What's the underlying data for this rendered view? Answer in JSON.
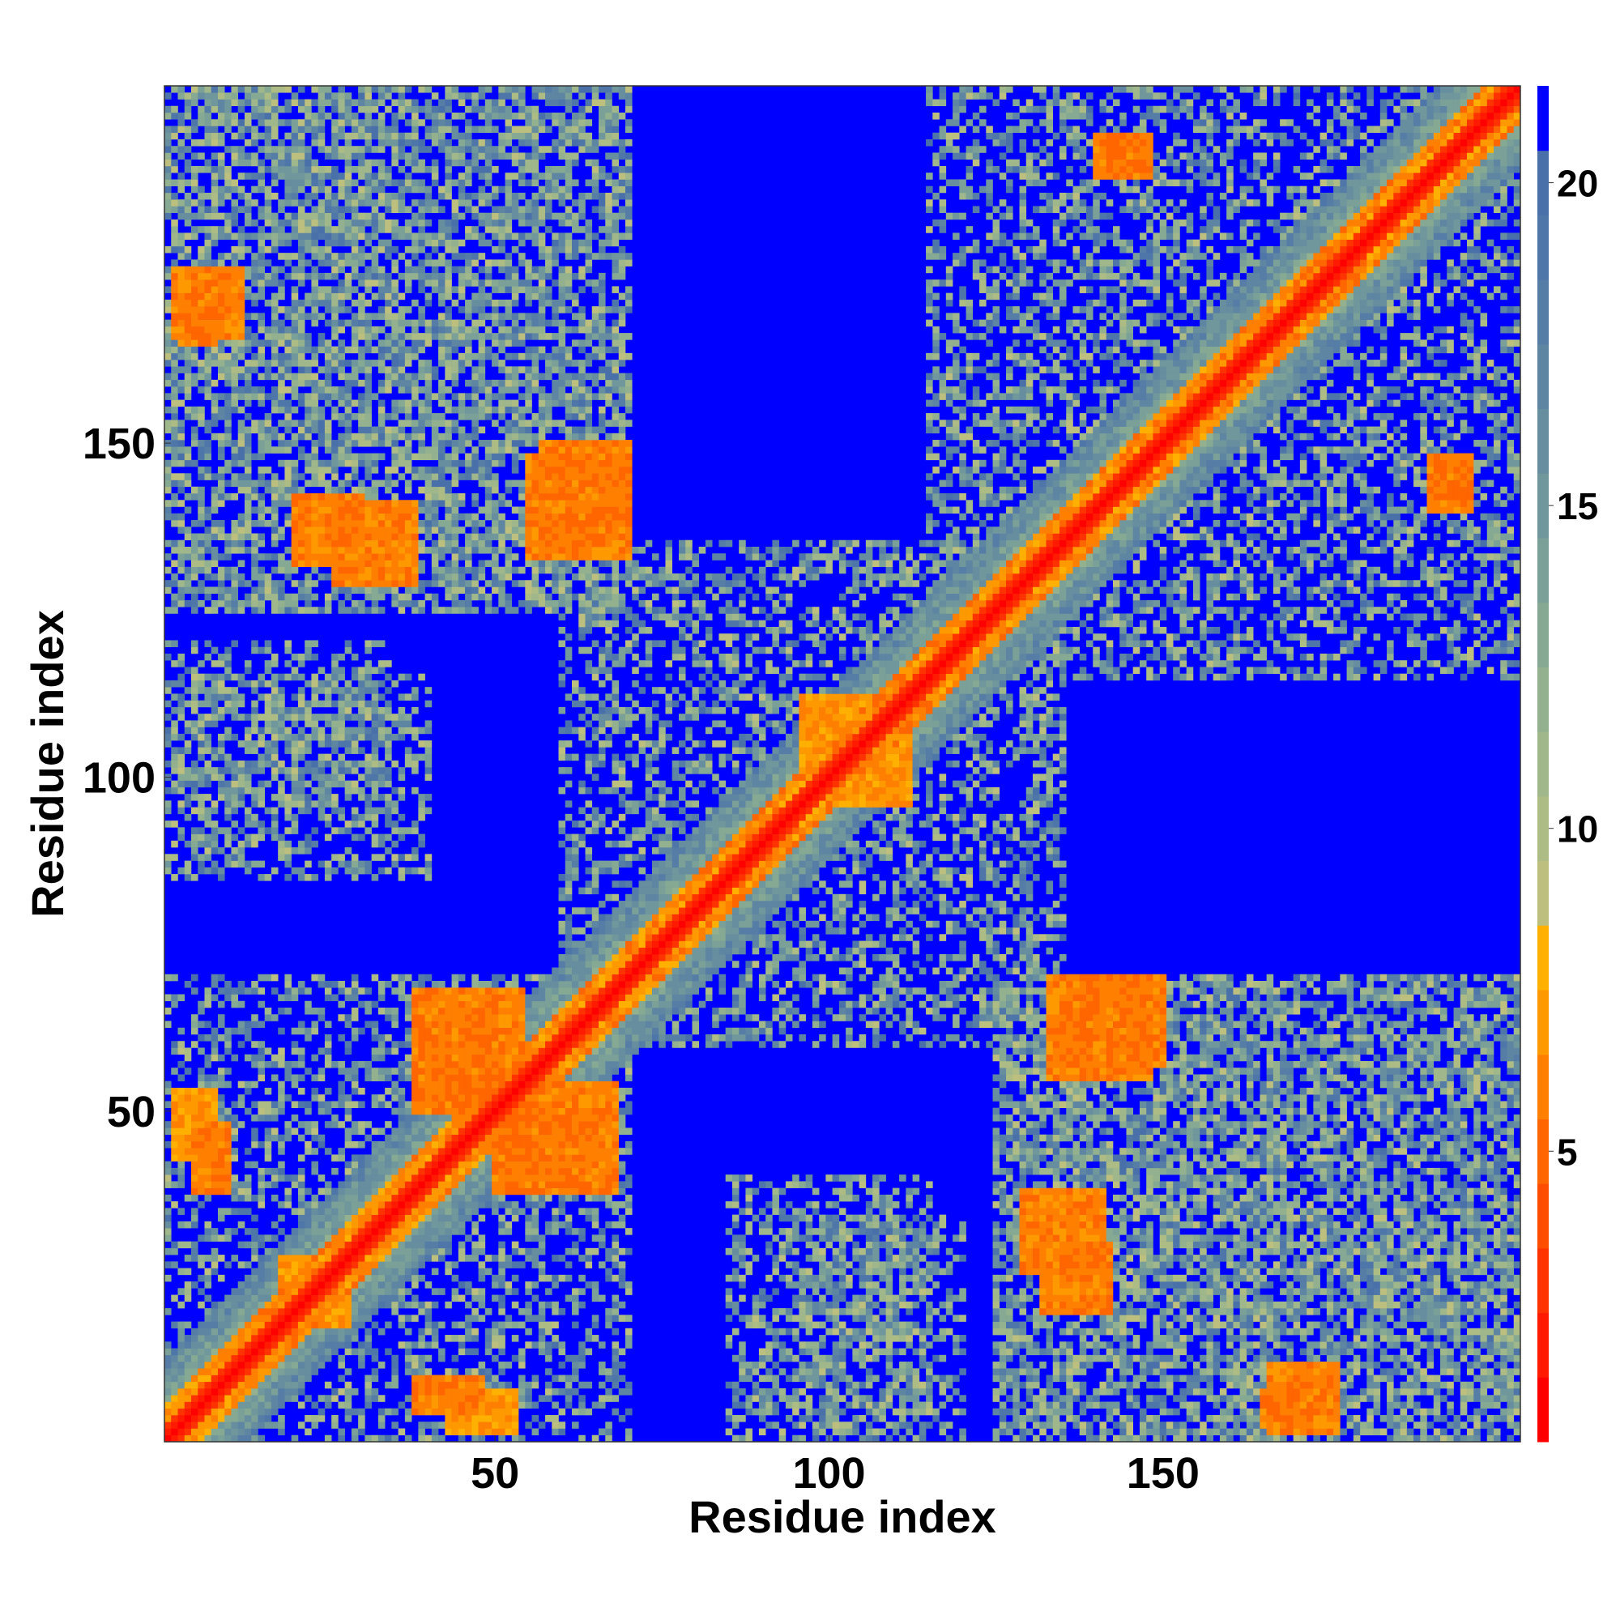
{
  "chart_data": {
    "type": "heatmap",
    "title": "",
    "xlabel": "Residue index",
    "ylabel": "Residue index",
    "n_residues": 203,
    "xlim": [
      1,
      203
    ],
    "ylim": [
      1,
      203
    ],
    "x_ticks": [
      50,
      100,
      150
    ],
    "y_ticks": [
      50,
      100,
      150
    ],
    "colorbar": {
      "ticks": [
        5,
        10,
        15,
        20
      ],
      "range": [
        0.5,
        21.5
      ],
      "bins": [
        {
          "max": 1.5,
          "color": "#ff0000"
        },
        {
          "max": 2.5,
          "color": "#ff1a00"
        },
        {
          "max": 3.5,
          "color": "#ff3300"
        },
        {
          "max": 4.5,
          "color": "#ff4d00"
        },
        {
          "max": 5.5,
          "color": "#ff6600"
        },
        {
          "max": 6.5,
          "color": "#ff8000"
        },
        {
          "max": 7.5,
          "color": "#ff9900"
        },
        {
          "max": 8.5,
          "color": "#ffb000"
        },
        {
          "max": 9.5,
          "color": "#bdbf7f"
        },
        {
          "max": 10.5,
          "color": "#adbb85"
        },
        {
          "max": 11.5,
          "color": "#9fb78a"
        },
        {
          "max": 12.5,
          "color": "#93b18f"
        },
        {
          "max": 13.5,
          "color": "#86a993"
        },
        {
          "max": 14.5,
          "color": "#7ba098"
        },
        {
          "max": 15.5,
          "color": "#70979c"
        },
        {
          "max": 16.5,
          "color": "#668e9f"
        },
        {
          "max": 17.5,
          "color": "#5e86a2"
        },
        {
          "max": 18.5,
          "color": "#567da6"
        },
        {
          "max": 19.5,
          "color": "#4f76a8"
        },
        {
          "max": 20.5,
          "color": "#4a70aa"
        },
        {
          "max": 21.5,
          "color": "#0000ff"
        }
      ]
    },
    "structure": {
      "background_value": 21,
      "diagonal_value": 1,
      "contact_features": [
        {
          "i": [
            2,
            12
          ],
          "j": [
            166,
            176
          ],
          "value": 6
        },
        {
          "i": [
            26,
            38
          ],
          "j": [
            129,
            141
          ],
          "value": 6
        },
        {
          "i": [
            57,
            70
          ],
          "j": [
            135,
            150
          ],
          "value": 6
        },
        {
          "i": [
            38,
            54
          ],
          "j": [
            50,
            68
          ],
          "value": 6
        },
        {
          "i": [
            50,
            64
          ],
          "j": [
            38,
            50
          ],
          "value": 6
        },
        {
          "i": [
            18,
            26
          ],
          "j": [
            18,
            28
          ],
          "value": 7
        },
        {
          "i": [
            38,
            48
          ],
          "j": [
            5,
            10
          ],
          "value": 6
        },
        {
          "i": [
            100,
            112
          ],
          "j": [
            96,
            108
          ],
          "value": 7
        },
        {
          "i": [
            133,
            148
          ],
          "j": [
            55,
            70
          ],
          "value": 6
        },
        {
          "i": [
            132,
            142
          ],
          "j": [
            20,
            30
          ],
          "value": 6
        },
        {
          "i": [
            165,
            172
          ],
          "j": [
            3,
            8
          ],
          "value": 6
        },
        {
          "i": [
            190,
            196
          ],
          "j": [
            140,
            148
          ],
          "value": 6
        },
        {
          "i": [
            142,
            148
          ],
          "j": [
            190,
            196
          ],
          "value": 6
        },
        {
          "i": [
            2,
            8
          ],
          "j": [
            43,
            53
          ],
          "value": 7
        }
      ],
      "contact_regions": [
        {
          "i": [
            1,
            70
          ],
          "j": [
            1,
            70
          ]
        },
        {
          "i": [
            60,
            135
          ],
          "j": [
            60,
            135
          ]
        },
        {
          "i": [
            115,
            203
          ],
          "j": [
            115,
            203
          ]
        },
        {
          "i": [
            1,
            70
          ],
          "j": [
            125,
            203
          ]
        },
        {
          "i": [
            125,
            203
          ],
          "j": [
            1,
            70
          ]
        },
        {
          "i": [
            1,
            35
          ],
          "j": [
            95,
            120
          ]
        },
        {
          "i": [
            85,
            115
          ],
          "j": [
            1,
            40
          ]
        }
      ]
    }
  }
}
